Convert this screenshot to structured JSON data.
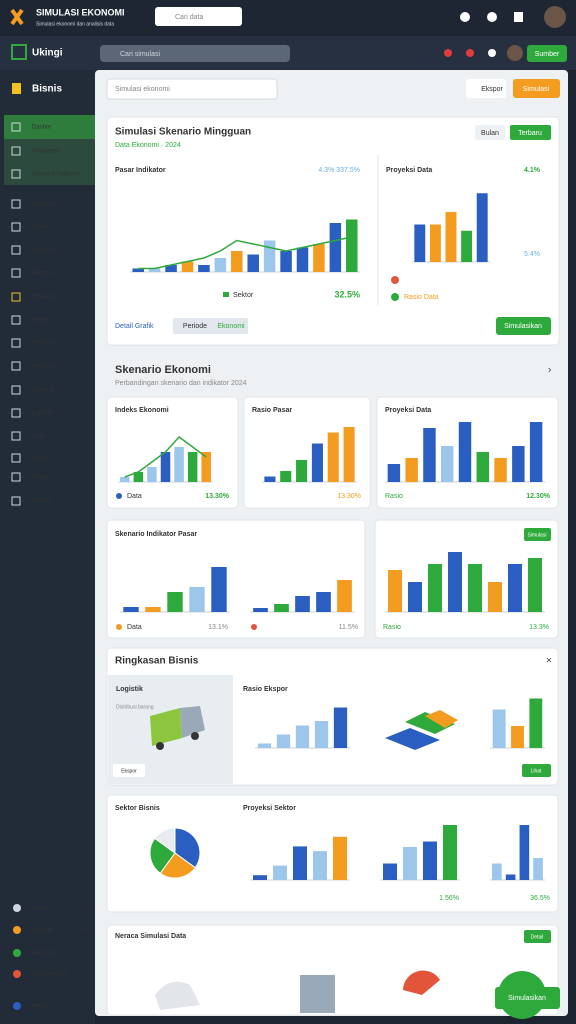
{
  "header": {
    "brand": "SIMULASI EKONOMI",
    "tagline": "Simulasi ekonomi dan analisis data",
    "search": "Cari data"
  },
  "nav": {
    "brand": "Ukingi",
    "search": "Cari simulasi",
    "button": "Sumber"
  },
  "sidebar": {
    "title": "Bisnis",
    "items": [
      "Dasbor",
      "Ringkasan",
      "Ekonomi Indikator",
      "Simulasi",
      "Model",
      "Skenario",
      "Regresi",
      "Proyeksi",
      "Analisis",
      "Prediksi",
      "Indikator",
      "Dampak",
      "Laporan",
      "Data",
      "Grafik",
      "Ekspor",
      "Analitik"
    ],
    "bottom": [
      "Akun",
      "Setelan",
      "Bantuan",
      "Dokumentasi",
      "Keluar"
    ]
  },
  "toolbar": {
    "search": "Simulasi ekonomi",
    "export": "Ekspor",
    "simulate": "Simulasi"
  },
  "main_card": {
    "title": "Simulasi Skenario Mingguan",
    "subtitle": "Data Ekonomi · 2024",
    "tab1": "Bulan",
    "tab2": "Terbaru",
    "left_label": "Pasar Indikator",
    "stat1": "4.3%  337.5%",
    "legend": "Sektor",
    "pct": "32.5%",
    "right_title": "Proyeksi Data",
    "right_stat": "4.1%",
    "right_stat2": "5.4%",
    "legend2": "Rasio Data",
    "link": "Detail Grafik",
    "tab3": "Periode",
    "tab4": "Ekonomi",
    "button": "Simulasikan"
  },
  "section2": {
    "title": "Skenario Ekonomi",
    "subtitle": "Perbandingan skenario dan indikator 2024",
    "card1": "Indeks Ekonomi",
    "card2": "Rasio Pasar",
    "card3": "Proyeksi Data",
    "pct1": "13.30%",
    "pct2": "13.30%",
    "pct3": "12.30%",
    "foot1": "Data",
    "foot3": "Rasio"
  },
  "section3": {
    "title": "Skenario Indikator Pasar",
    "button": "Simulasi",
    "pct1": "13.1%",
    "pct2": "11.5%",
    "pct3": "13.3%",
    "foot1": "Data",
    "foot3": "Rasio"
  },
  "section4": {
    "title": "Ringkasan Bisnis",
    "panel": "Logistik",
    "panel_sub": "Distribusi barang",
    "tag": "Ekspor",
    "chart": "Rasio Ekspor",
    "button": "Lihat"
  },
  "section5": {
    "title": "Sektor Bisnis",
    "chart": "Proyeksi Sektor",
    "pct1": "1.56%",
    "pct2": "36.5%"
  },
  "section6": {
    "title": "Neraca Simulasi Data",
    "button": "Detail",
    "button2": "Simulasikan"
  },
  "pie": {
    "values": [
      35,
      25,
      25,
      15
    ],
    "colors": [
      "#2a5fc1",
      "#f39c1f",
      "#2eaa3c",
      "#e8ecf1"
    ]
  },
  "charts": [
    {
      "ylim": [
        0,
        20
      ],
      "values": [
        1,
        1,
        2,
        3,
        2,
        4,
        6,
        5,
        9,
        6,
        7,
        8,
        14,
        15
      ],
      "line": [
        1,
        1,
        2,
        3,
        4,
        6,
        9,
        8,
        7,
        6,
        7,
        8,
        9,
        10
      ],
      "colors": [
        "#2a5fc1",
        "#9cc6ea",
        "#2a5fc1",
        "#f39c1f",
        "#2a5fc1",
        "#9cc6ea",
        "#f39c1f",
        "#2a5fc1",
        "#9cc6ea",
        "#2a5fc1",
        "#2a5fc1",
        "#f39c1f",
        "#2a5fc1",
        "#2eaa3c"
      ]
    },
    {
      "ylim": [
        0,
        12
      ],
      "values": [
        6,
        6,
        8,
        5,
        11
      ],
      "colors": [
        "#2a5fc1",
        "#f39c1f",
        "#f39c1f",
        "#2eaa3c",
        "#2a5fc1"
      ]
    },
    {
      "ylim": [
        0,
        10
      ],
      "values": [
        1,
        2,
        3,
        6,
        7,
        6,
        6
      ],
      "line": [
        1,
        2,
        4,
        6,
        9,
        7,
        5
      ],
      "colors": [
        "#9cc6ea",
        "#2eaa3c",
        "#9cc6ea",
        "#2a5fc1",
        "#9cc6ea",
        "#2eaa3c",
        "#f39c1f"
      ]
    },
    {
      "ylim": [
        0,
        10
      ],
      "values": [
        1,
        2,
        4,
        7,
        9,
        10
      ],
      "colors": [
        "#2a5fc1",
        "#2eaa3c",
        "#2eaa3c",
        "#2a5fc1",
        "#f39c1f",
        "#f39c1f"
      ]
    },
    {
      "ylim": [
        0,
        10
      ],
      "values": [
        3,
        4,
        9,
        6,
        10,
        5,
        4,
        6,
        10
      ],
      "colors": [
        "#2a5fc1",
        "#f39c1f",
        "#2a5fc1",
        "#9cc6ea",
        "#2a5fc1",
        "#2eaa3c",
        "#f39c1f",
        "#2a5fc1",
        "#2a5fc1"
      ]
    },
    {
      "ylim": [
        0,
        10
      ],
      "values": [
        1,
        1,
        4,
        5,
        9
      ],
      "colors": [
        "#2a5fc1",
        "#f39c1f",
        "#2eaa3c",
        "#9cc6ea",
        "#2a5fc1"
      ]
    },
    {
      "ylim": [
        0,
        10
      ],
      "values": [
        1,
        2,
        4,
        5,
        8
      ],
      "colors": [
        "#2a5fc1",
        "#2eaa3c",
        "#2a5fc1",
        "#2a5fc1",
        "#f39c1f"
      ]
    },
    {
      "ylim": [
        0,
        10
      ],
      "values": [
        7,
        5,
        8,
        10,
        8,
        5,
        8,
        9
      ],
      "colors": [
        "#f39c1f",
        "#2a5fc1",
        "#2eaa3c",
        "#2a5fc1",
        "#2eaa3c",
        "#f39c1f",
        "#2a5fc1",
        "#2eaa3c"
      ]
    },
    {
      "ylim": [
        0,
        10
      ],
      "values": [
        1,
        3,
        5,
        6,
        9
      ],
      "colors": [
        "#9cc6ea",
        "#9cc6ea",
        "#9cc6ea",
        "#9cc6ea",
        "#2a5fc1"
      ]
    },
    {
      "ylim": [
        0,
        10
      ],
      "values": [
        7,
        4,
        9
      ],
      "colors": [
        "#9cc6ea",
        "#f39c1f",
        "#2eaa3c"
      ]
    },
    {
      "ylim": [
        0,
        10
      ],
      "values": [
        1,
        3,
        7,
        6,
        9
      ],
      "colors": [
        "#2a5fc1",
        "#9cc6ea",
        "#2a5fc1",
        "#9cc6ea",
        "#f39c1f"
      ]
    },
    {
      "ylim": [
        0,
        10
      ],
      "values": [
        3,
        6,
        7,
        10
      ],
      "colors": [
        "#2a5fc1",
        "#9cc6ea",
        "#2a5fc1",
        "#2eaa3c"
      ]
    },
    {
      "ylim": [
        0,
        10
      ],
      "values": [
        3,
        1,
        10,
        4
      ],
      "colors": [
        "#9cc6ea",
        "#2a5fc1",
        "#2a5fc1",
        "#9cc6ea"
      ]
    }
  ]
}
